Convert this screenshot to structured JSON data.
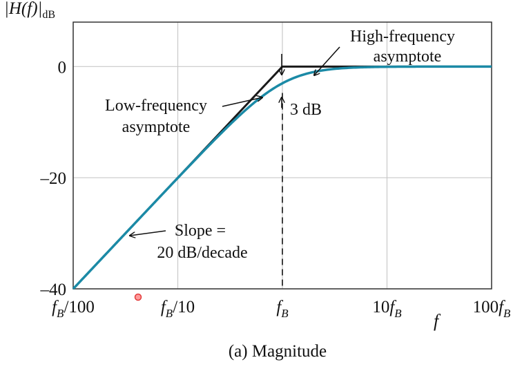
{
  "chart_data": {
    "type": "line",
    "title": "",
    "caption": "(a) Magnitude",
    "ylabel_main": "|H(f)|",
    "ylabel_sub": "dB",
    "xlabel": "f",
    "x_scale": "log",
    "x_unit": "f_B",
    "x_range": [
      0.01,
      100
    ],
    "y_range": [
      -40,
      8
    ],
    "grid": true,
    "x_ticks": [
      {
        "value": 0.01,
        "main": "f",
        "sub": "B",
        "suffix": "/100",
        "prefix": ""
      },
      {
        "value": 0.1,
        "main": "f",
        "sub": "B",
        "suffix": "/10",
        "prefix": ""
      },
      {
        "value": 1,
        "main": "f",
        "sub": "B",
        "suffix": "",
        "prefix": ""
      },
      {
        "value": 10,
        "main": "f",
        "sub": "B",
        "suffix": "",
        "prefix": "10"
      },
      {
        "value": 100,
        "main": "f",
        "sub": "B",
        "suffix": "",
        "prefix": "100"
      }
    ],
    "y_ticks": [
      {
        "value": 0,
        "label": "0"
      },
      {
        "value": -20,
        "label": "–20"
      },
      {
        "value": -40,
        "label": "–40"
      }
    ],
    "series": [
      {
        "name": "",
        "kind": "asymptote",
        "color": "#1a1a1a",
        "x": [
          0.01,
          1,
          100
        ],
        "y": [
          -40,
          0,
          0
        ]
      },
      {
        "name": "",
        "kind": "response",
        "color": "#1b8aa6",
        "formula": "20*log10(x/sqrt(1+x*x))"
      }
    ],
    "annotations": {
      "high_freq": [
        "High-frequency",
        "asymptote"
      ],
      "low_freq": [
        "Low-frequency",
        "asymptote"
      ],
      "three_db": "3 dB",
      "slope": [
        "Slope =",
        "20 dB/decade"
      ]
    }
  }
}
